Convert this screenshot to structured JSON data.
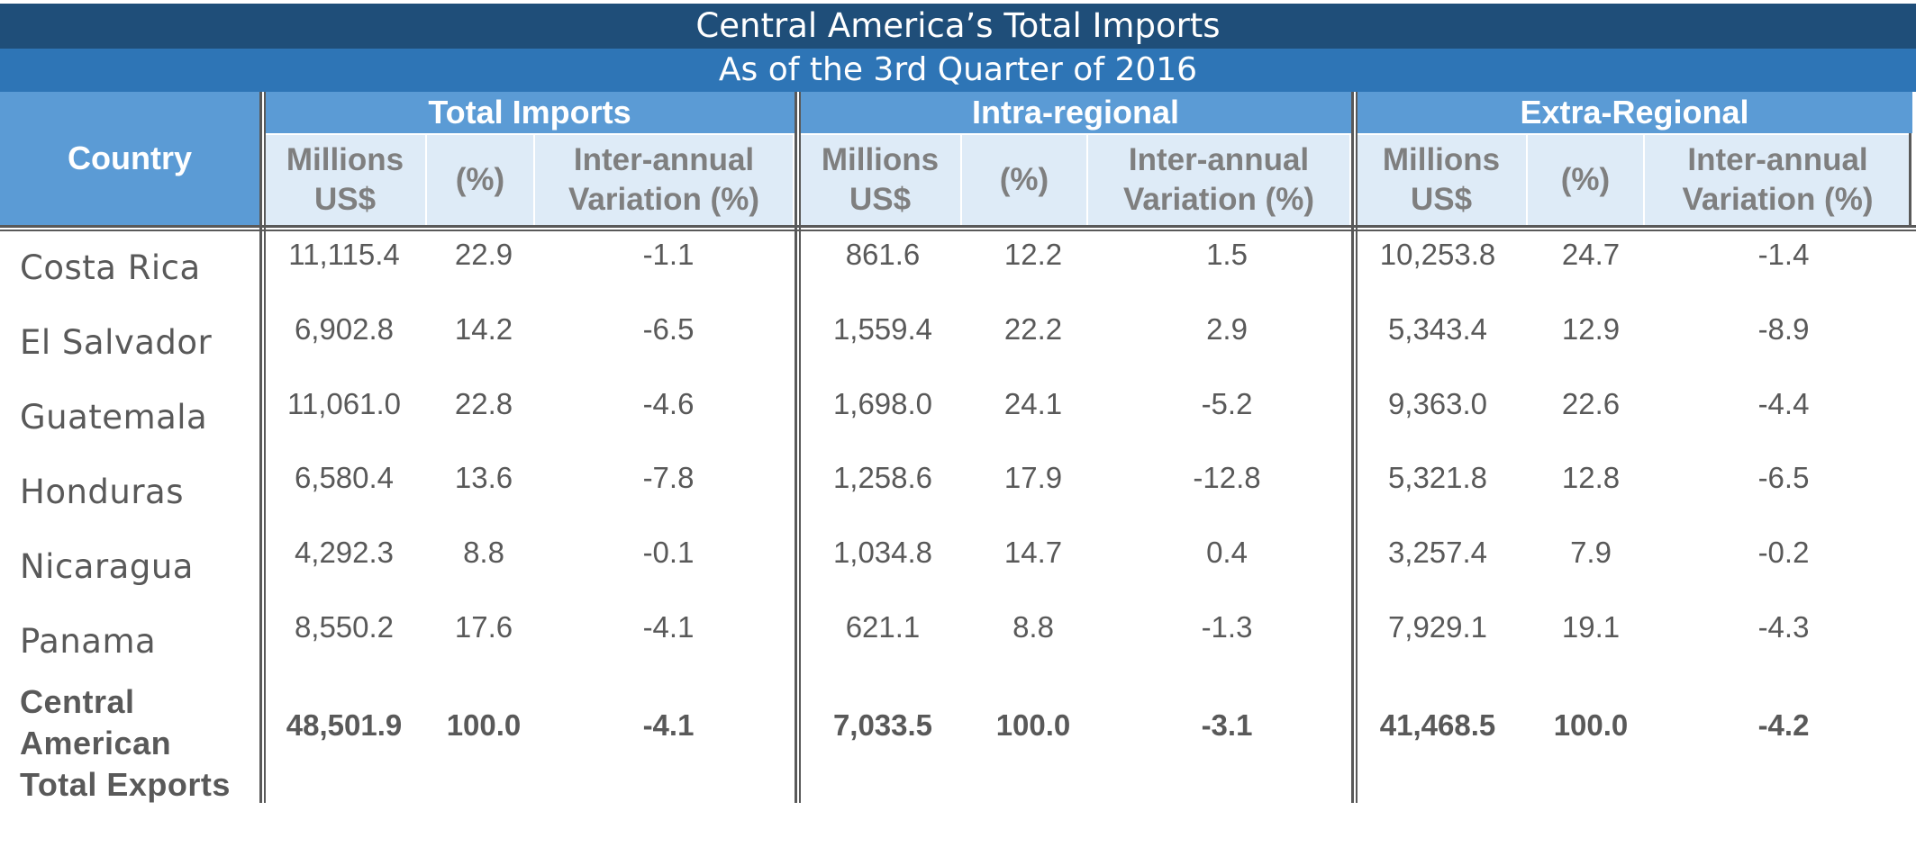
{
  "title": "Central America’s Total Imports",
  "subtitle": "As of the 3rd Quarter of 2016",
  "colors": {
    "title_band": "#1f4e79",
    "subtitle_band": "#2e75b6",
    "header": "#5b9bd5",
    "subheader": "#deebf7",
    "text": "#595959"
  },
  "chart_data": {
    "type": "table",
    "title": "Central America’s Total Imports",
    "subtitle": "As of the 3rd Quarter of 2016",
    "row_header": "Country",
    "groups": [
      "Total Imports",
      "Intra-regional",
      "Extra-Regional"
    ],
    "subcolumns": [
      "Millions US$",
      "(%)",
      "Inter-annual Variation (%)"
    ],
    "rows": [
      {
        "country": "Costa Rica",
        "values": [
          "11,115.4",
          "22.9",
          "-1.1",
          "861.6",
          "12.2",
          "1.5",
          "10,253.8",
          "24.7",
          "-1.4"
        ]
      },
      {
        "country": "El Salvador",
        "values": [
          "6,902.8",
          "14.2",
          "-6.5",
          "1,559.4",
          "22.2",
          "2.9",
          "5,343.4",
          "12.9",
          "-8.9"
        ]
      },
      {
        "country": "Guatemala",
        "values": [
          "11,061.0",
          "22.8",
          "-4.6",
          "1,698.0",
          "24.1",
          "-5.2",
          "9,363.0",
          "22.6",
          "-4.4"
        ]
      },
      {
        "country": "Honduras",
        "values": [
          "6,580.4",
          "13.6",
          "-7.8",
          "1,258.6",
          "17.9",
          "-12.8",
          "5,321.8",
          "12.8",
          "-6.5"
        ]
      },
      {
        "country": "Nicaragua",
        "values": [
          "4,292.3",
          "8.8",
          "-0.1",
          "1,034.8",
          "14.7",
          "0.4",
          "3,257.4",
          "7.9",
          "-0.2"
        ]
      },
      {
        "country": "Panama",
        "values": [
          "8,550.2",
          "17.6",
          "-4.1",
          "621.1",
          "8.8",
          "-1.3",
          "7,929.1",
          "19.1",
          "-4.3"
        ]
      }
    ],
    "total": {
      "country": "Central American Total Exports",
      "values": [
        "48,501.9",
        "100.0",
        "-4.1",
        "7,033.5",
        "100.0",
        "-3.1",
        "41,468.5",
        "100.0",
        "-4.2"
      ]
    }
  }
}
